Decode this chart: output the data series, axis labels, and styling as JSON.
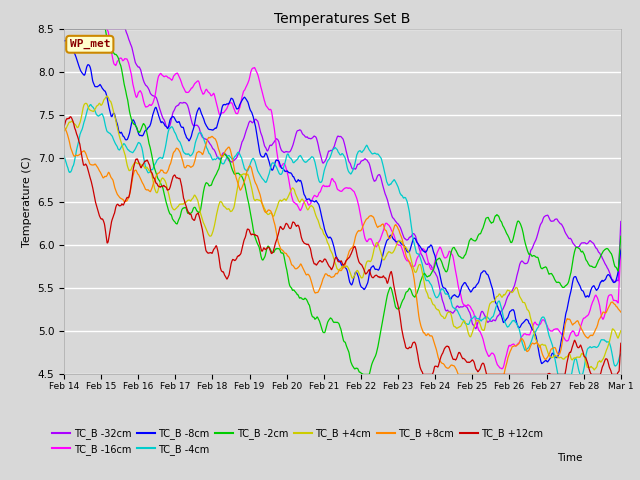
{
  "title": "Temperatures Set B",
  "xlabel": "Time",
  "ylabel": "Temperature (C)",
  "ylim": [
    4.5,
    8.5
  ],
  "bg_color": "#d8d8d8",
  "series_order": [
    "TC_B -32cm",
    "TC_B -16cm",
    "TC_B -8cm",
    "TC_B -4cm",
    "TC_B -2cm",
    "TC_B +4cm",
    "TC_B +8cm",
    "TC_B +12cm"
  ],
  "series_colors": {
    "TC_B -32cm": "#aa00ff",
    "TC_B -16cm": "#ff00ff",
    "TC_B -8cm": "#0000ff",
    "TC_B -4cm": "#00cccc",
    "TC_B -2cm": "#00cc00",
    "TC_B +4cm": "#cccc00",
    "TC_B +8cm": "#ff8800",
    "TC_B +12cm": "#cc0000"
  },
  "wp_met_box": {
    "text": "WP_met",
    "facecolor": "#ffffcc",
    "edgecolor": "#cc8800",
    "textcolor": "#880000"
  },
  "xtick_labels": [
    "Feb 14",
    "Feb 15",
    "Feb 16",
    "Feb 17",
    "Feb 18",
    "Feb 19",
    "Feb 20",
    "Feb 21",
    "Feb 22",
    "Feb 23",
    "Feb 24",
    "Feb 25",
    "Feb 26",
    "Feb 27",
    "Feb 28",
    "Mar 1"
  ],
  "n_days": 15.5,
  "n_points": 3000
}
